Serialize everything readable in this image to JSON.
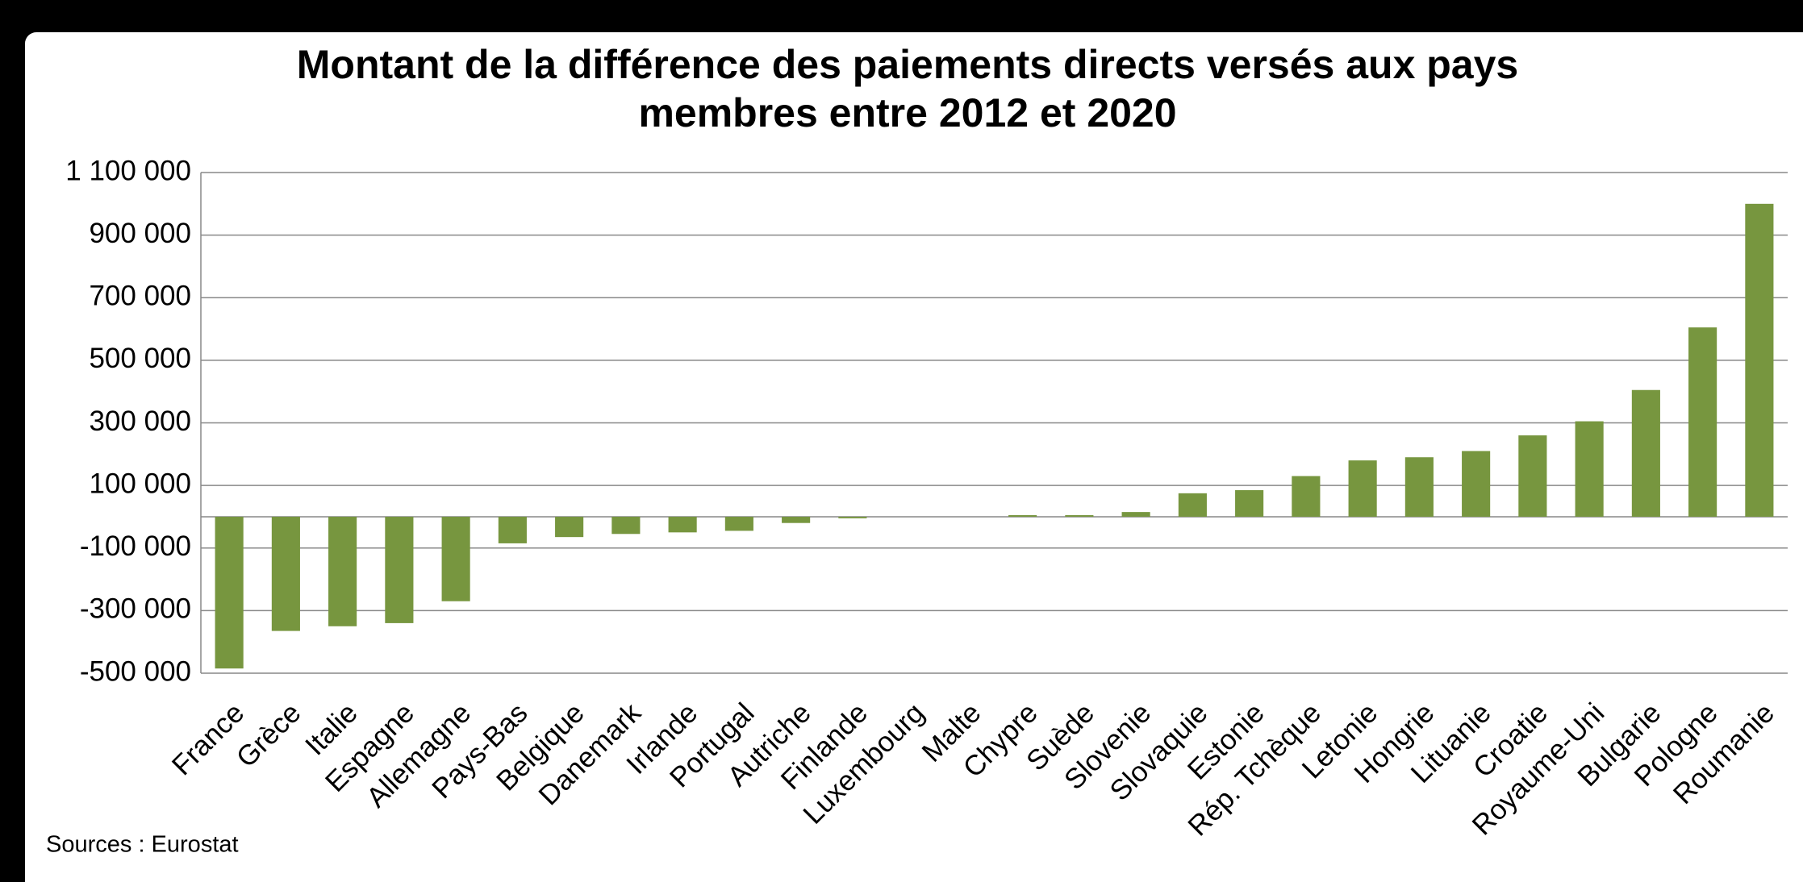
{
  "chart_data": {
    "type": "bar",
    "title": "Montant de la différence des paiements directs versés aux pays membres entre 2012 et 2020",
    "source": "Sources : Eurostat",
    "categories": [
      "France",
      "Grèce",
      "Italie",
      "Espagne",
      "Allemagne",
      "Pays-Bas",
      "Belgique",
      "Danemark",
      "Irlande",
      "Portugal",
      "Autriche",
      "Finlande",
      "Luxembourg",
      "Malte",
      "Chypre",
      "Suède",
      "Slovenie",
      "Slovaquie",
      "Estonie",
      "Rép. Tchèque",
      "Letonie",
      "Hongrie",
      "Lituanie",
      "Croatie",
      "Royaume-Uni",
      "Bulgarie",
      "Pologne",
      "Roumanie"
    ],
    "values": [
      -485000,
      -365000,
      -350000,
      -340000,
      -270000,
      -85000,
      -65000,
      -55000,
      -50000,
      -45000,
      -20000,
      -5000,
      0,
      0,
      5000,
      5000,
      15000,
      75000,
      85000,
      130000,
      180000,
      190000,
      210000,
      260000,
      305000,
      405000,
      605000,
      1000000
    ],
    "color": "#77963f",
    "ylim": [
      -500000,
      1100000
    ],
    "yticks": [
      {
        "value": -500000,
        "label": "-500 000"
      },
      {
        "value": -300000,
        "label": "-300 000"
      },
      {
        "value": -100000,
        "label": "-100 000"
      },
      {
        "value": 100000,
        "label": "100 000"
      },
      {
        "value": 300000,
        "label": "300 000"
      },
      {
        "value": 500000,
        "label": "500 000"
      },
      {
        "value": 700000,
        "label": "700 000"
      },
      {
        "value": 900000,
        "label": "900 000"
      },
      {
        "value": 1100000,
        "label": "1 100 000"
      }
    ],
    "grid": true
  }
}
